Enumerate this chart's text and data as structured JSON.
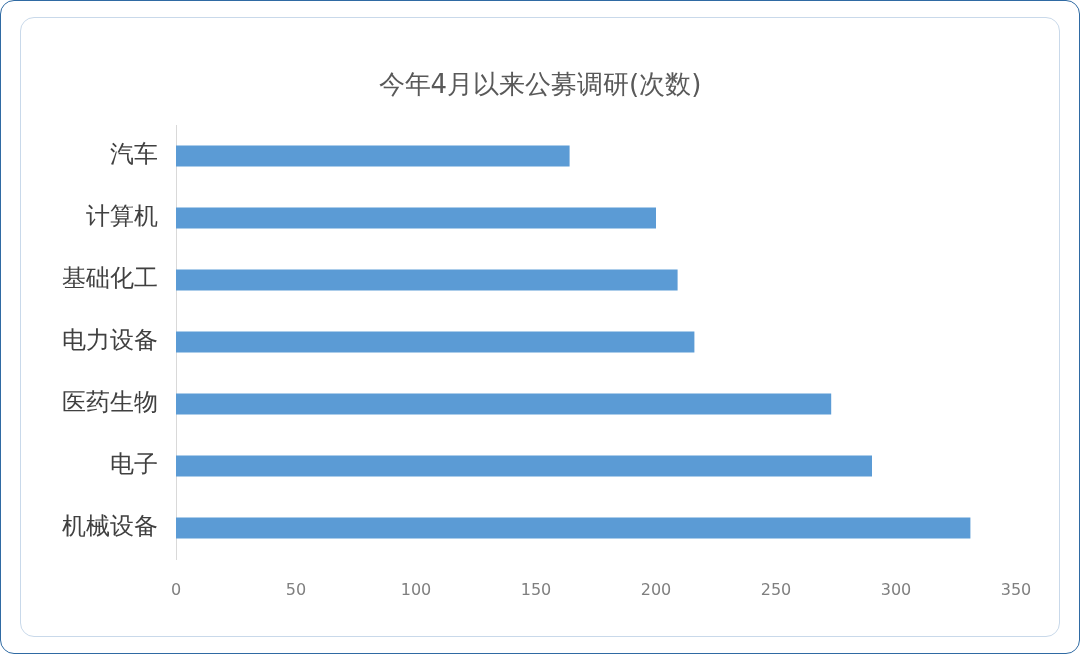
{
  "chart_data": {
    "type": "bar",
    "orientation": "horizontal",
    "title": "今年4月以来公募调研(次数)",
    "categories": [
      "汽车",
      "计算机",
      "基础化工",
      "电力设备",
      "医药生物",
      "电子",
      "机械设备"
    ],
    "values": [
      164,
      200,
      209,
      216,
      273,
      290,
      331
    ],
    "color": "#5b9bd5",
    "xlim": [
      0,
      350
    ],
    "xticks": [
      0,
      50,
      100,
      150,
      200,
      250,
      300,
      350
    ]
  }
}
